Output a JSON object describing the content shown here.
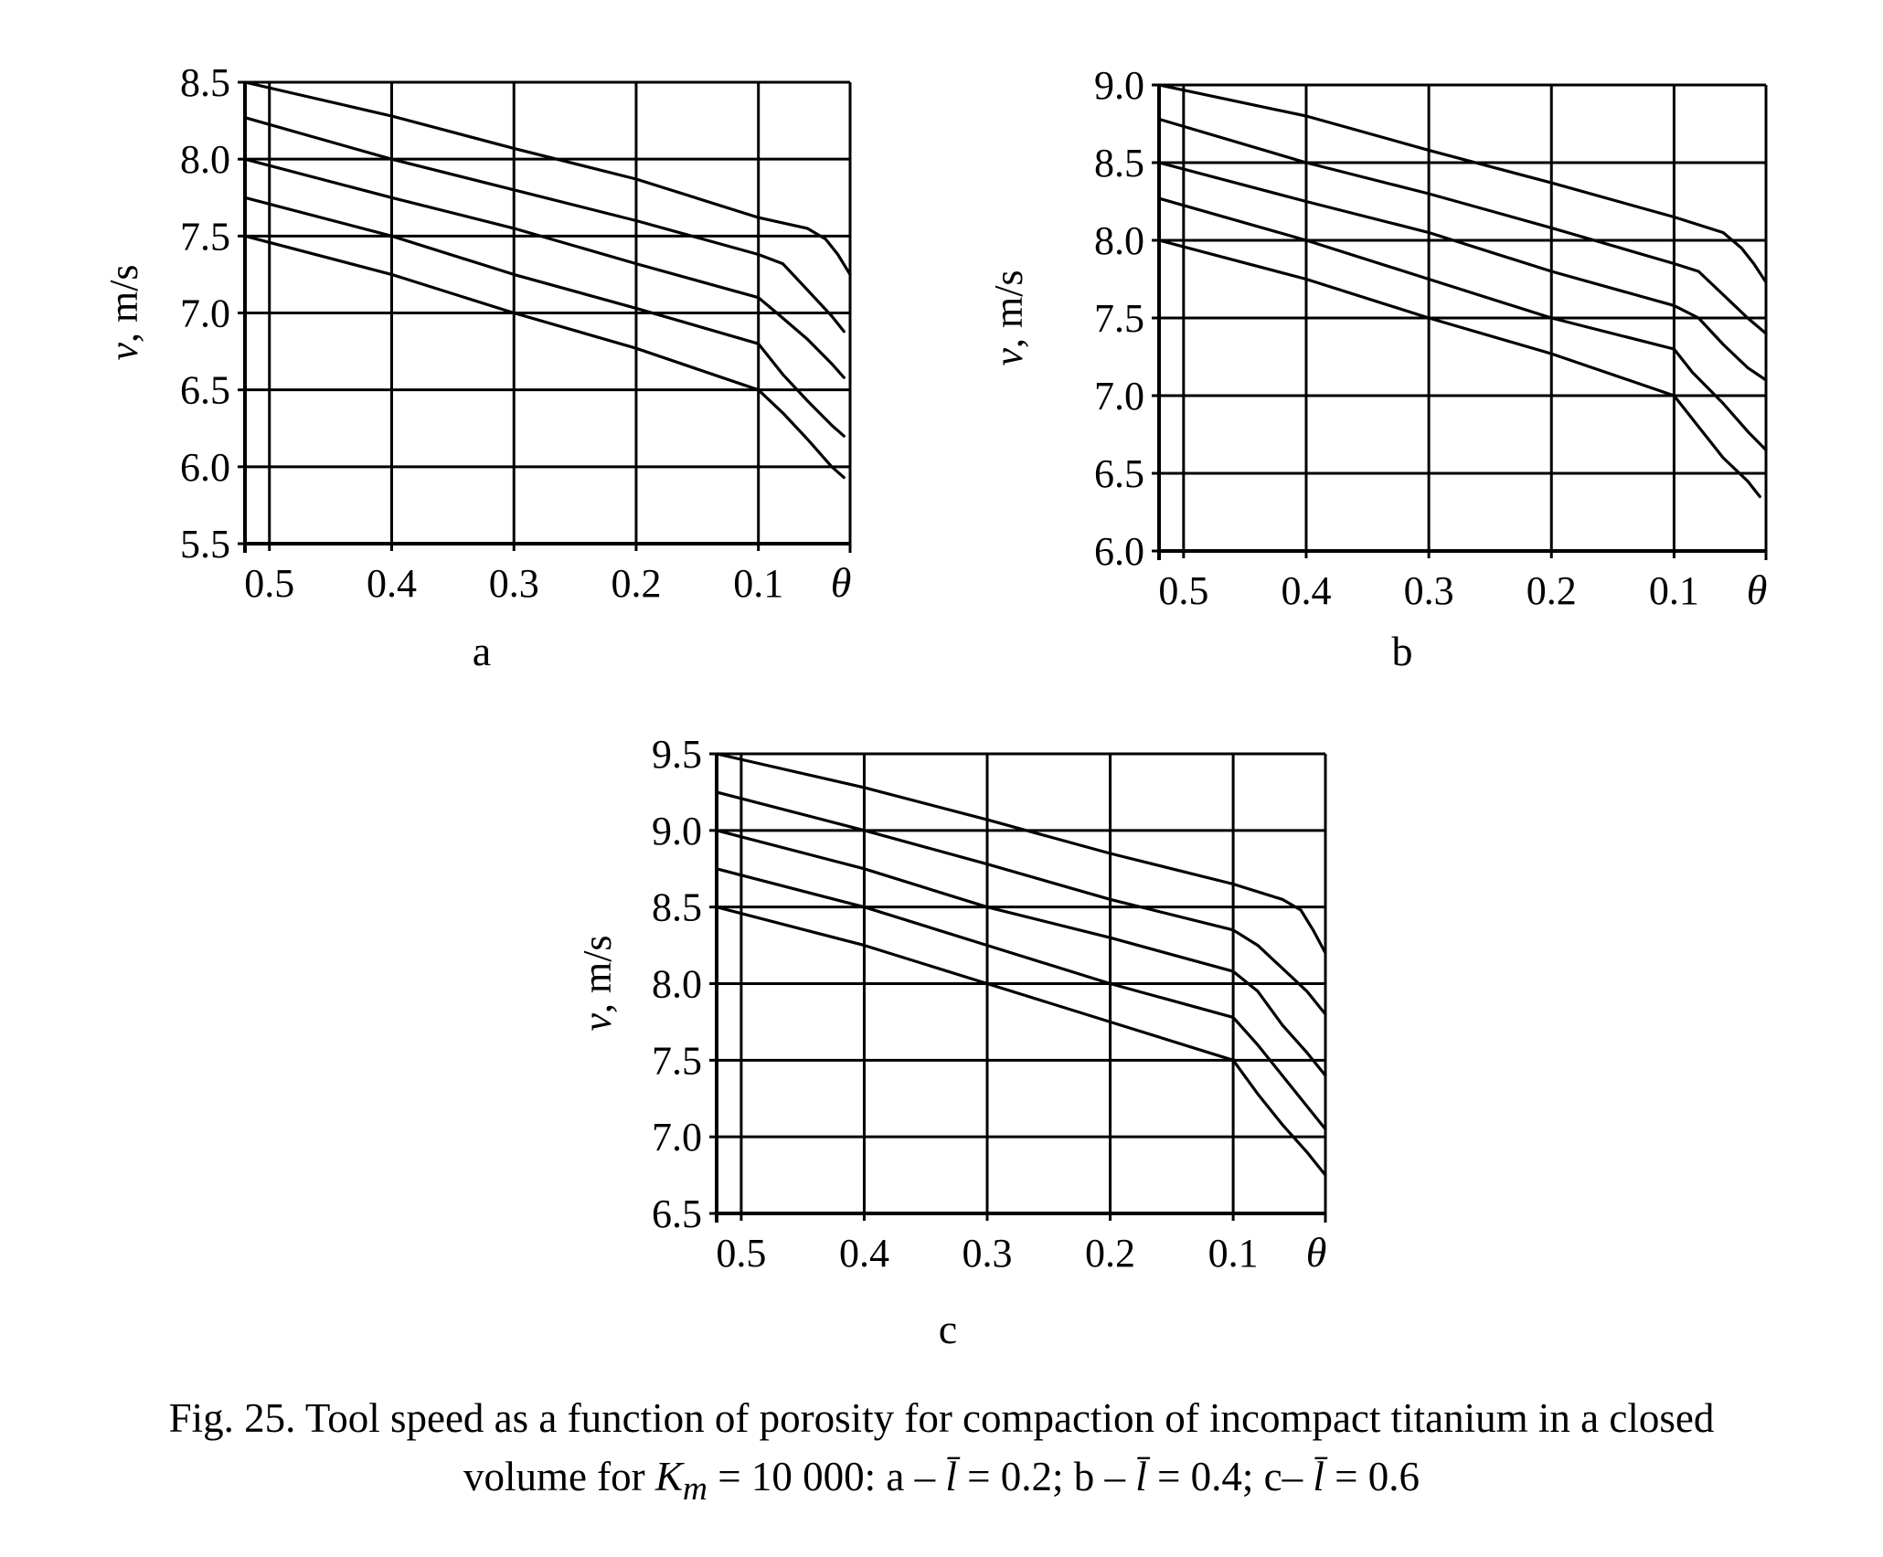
{
  "caption": {
    "line1": "Fig. 25. Tool speed as a function of porosity for compaction of incompact titanium in a closed",
    "line2_prefix": "volume for ",
    "k_symbol": "K",
    "k_sub": "m",
    "line2_mid": " = 10 000: a – ",
    "l_symbol": "l̄",
    "a_value": " = 0.2; b – ",
    "b_value": " = 0.4; c– ",
    "c_value": " = 0.6"
  },
  "chart_data": [
    {
      "type": "line",
      "panel_label": "a",
      "ylabel": "v, m/s",
      "xlabel": "θ",
      "xlim": [
        0.52,
        0.025
      ],
      "ylim": [
        5.5,
        8.5
      ],
      "x_ticks": [
        "0.5",
        "0.4",
        "0.3",
        "0.2",
        "0.1"
      ],
      "y_ticks": [
        "8.5",
        "8.0",
        "7.5",
        "7.0",
        "6.5",
        "6.0",
        "5.5"
      ],
      "grid": true,
      "series": [
        {
          "x": [
            0.52,
            0.4,
            0.3,
            0.2,
            0.1,
            0.06,
            0.045,
            0.035,
            0.025
          ],
          "y": [
            8.5,
            8.28,
            8.07,
            7.87,
            7.62,
            7.55,
            7.48,
            7.38,
            7.25
          ]
        },
        {
          "x": [
            0.52,
            0.4,
            0.3,
            0.2,
            0.1,
            0.08,
            0.06,
            0.04,
            0.03
          ],
          "y": [
            8.27,
            8.0,
            7.8,
            7.6,
            7.38,
            7.32,
            7.15,
            6.98,
            6.88
          ]
        },
        {
          "x": [
            0.52,
            0.4,
            0.3,
            0.2,
            0.1,
            0.085,
            0.06,
            0.04,
            0.03
          ],
          "y": [
            8.0,
            7.75,
            7.55,
            7.32,
            7.1,
            7.0,
            6.83,
            6.67,
            6.58
          ]
        },
        {
          "x": [
            0.52,
            0.4,
            0.3,
            0.2,
            0.1,
            0.08,
            0.06,
            0.04,
            0.03
          ],
          "y": [
            7.75,
            7.5,
            7.25,
            7.03,
            6.8,
            6.6,
            6.43,
            6.27,
            6.2
          ]
        },
        {
          "x": [
            0.52,
            0.4,
            0.3,
            0.2,
            0.1,
            0.08,
            0.06,
            0.04,
            0.03
          ],
          "y": [
            7.5,
            7.25,
            7.0,
            6.77,
            6.5,
            6.35,
            6.18,
            6.0,
            5.93
          ]
        }
      ]
    },
    {
      "type": "line",
      "panel_label": "b",
      "ylabel": "v, m/s",
      "xlabel": "θ",
      "xlim": [
        0.52,
        0.025
      ],
      "ylim": [
        6.0,
        9.0
      ],
      "x_ticks": [
        "0.5",
        "0.4",
        "0.3",
        "0.2",
        "0.1"
      ],
      "y_ticks": [
        "9.0",
        "8.5",
        "8.0",
        "7.5",
        "7.0",
        "6.5",
        "6.0"
      ],
      "grid": true,
      "series": [
        {
          "x": [
            0.52,
            0.4,
            0.3,
            0.2,
            0.1,
            0.06,
            0.045,
            0.035,
            0.025
          ],
          "y": [
            9.0,
            8.8,
            8.58,
            8.37,
            8.15,
            8.05,
            7.95,
            7.85,
            7.73
          ]
        },
        {
          "x": [
            0.52,
            0.4,
            0.3,
            0.2,
            0.1,
            0.08,
            0.06,
            0.04,
            0.025
          ],
          "y": [
            8.78,
            8.5,
            8.3,
            8.08,
            7.85,
            7.8,
            7.65,
            7.5,
            7.4
          ]
        },
        {
          "x": [
            0.52,
            0.4,
            0.3,
            0.2,
            0.1,
            0.08,
            0.06,
            0.04,
            0.025
          ],
          "y": [
            8.5,
            8.25,
            8.05,
            7.8,
            7.58,
            7.5,
            7.33,
            7.18,
            7.1
          ]
        },
        {
          "x": [
            0.52,
            0.4,
            0.3,
            0.2,
            0.1,
            0.085,
            0.06,
            0.04,
            0.025
          ],
          "y": [
            8.27,
            8.0,
            7.75,
            7.5,
            7.3,
            7.15,
            6.95,
            6.77,
            6.65
          ]
        },
        {
          "x": [
            0.52,
            0.4,
            0.3,
            0.2,
            0.1,
            0.08,
            0.06,
            0.04,
            0.03
          ],
          "y": [
            8.0,
            7.75,
            7.5,
            7.27,
            7.0,
            6.8,
            6.6,
            6.45,
            6.35
          ]
        }
      ]
    },
    {
      "type": "line",
      "panel_label": "c",
      "ylabel": "v, m/s",
      "xlabel": "θ",
      "xlim": [
        0.52,
        0.025
      ],
      "ylim": [
        6.5,
        9.5
      ],
      "x_ticks": [
        "0.5",
        "0.4",
        "0.3",
        "0.2",
        "0.1"
      ],
      "y_ticks": [
        "9.5",
        "9.0",
        "8.5",
        "8.0",
        "7.5",
        "7.0",
        "6.5"
      ],
      "grid": true,
      "series": [
        {
          "x": [
            0.52,
            0.4,
            0.3,
            0.2,
            0.1,
            0.06,
            0.045,
            0.035,
            0.025
          ],
          "y": [
            9.5,
            9.28,
            9.07,
            8.85,
            8.65,
            8.55,
            8.48,
            8.35,
            8.2
          ]
        },
        {
          "x": [
            0.52,
            0.4,
            0.3,
            0.2,
            0.1,
            0.08,
            0.06,
            0.04,
            0.025
          ],
          "y": [
            9.25,
            9.0,
            8.78,
            8.55,
            8.35,
            8.25,
            8.1,
            7.95,
            7.8
          ]
        },
        {
          "x": [
            0.52,
            0.4,
            0.3,
            0.2,
            0.1,
            0.08,
            0.06,
            0.04,
            0.025
          ],
          "y": [
            9.0,
            8.75,
            8.5,
            8.3,
            8.08,
            7.95,
            7.73,
            7.55,
            7.4
          ]
        },
        {
          "x": [
            0.52,
            0.4,
            0.3,
            0.2,
            0.1,
            0.08,
            0.06,
            0.04,
            0.025
          ],
          "y": [
            8.75,
            8.5,
            8.25,
            8.0,
            7.78,
            7.6,
            7.4,
            7.2,
            7.05
          ]
        },
        {
          "x": [
            0.52,
            0.4,
            0.3,
            0.2,
            0.1,
            0.08,
            0.06,
            0.04,
            0.025
          ],
          "y": [
            8.5,
            8.25,
            8.0,
            7.75,
            7.5,
            7.28,
            7.08,
            6.9,
            6.75
          ]
        }
      ]
    }
  ]
}
